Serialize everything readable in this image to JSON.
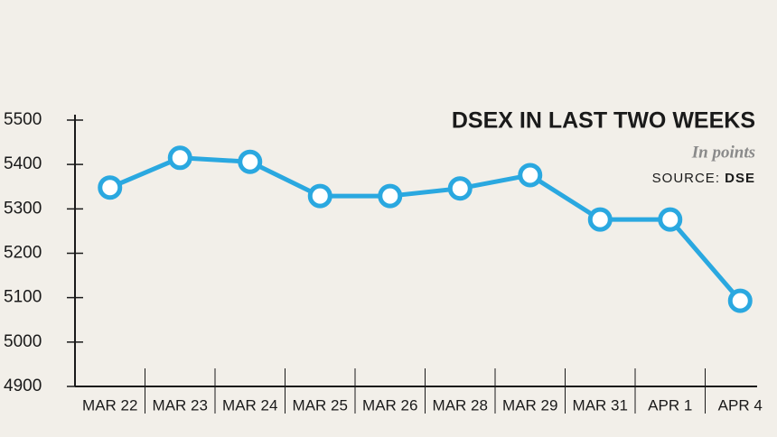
{
  "chart_data": {
    "type": "line",
    "title": "DSEX IN LAST TWO WEEKS",
    "subtitle": "In points",
    "source_label": "SOURCE:",
    "source": "DSE",
    "categories": [
      "MAR 22",
      "MAR 23",
      "MAR 24",
      "MAR 25",
      "MAR 26",
      "MAR 28",
      "MAR 29",
      "MAR 31",
      "APR 1",
      "APR 4"
    ],
    "series": [
      {
        "name": "DSEX",
        "color": "#2aa8e0",
        "values": [
          5348,
          5415,
          5406,
          5329,
          5329,
          5346,
          5376,
          5276,
          5276,
          5093
        ]
      }
    ],
    "ylim": [
      4900,
      5500
    ],
    "yticks": [
      4900,
      5000,
      5100,
      5200,
      5300,
      5400,
      5500
    ]
  }
}
